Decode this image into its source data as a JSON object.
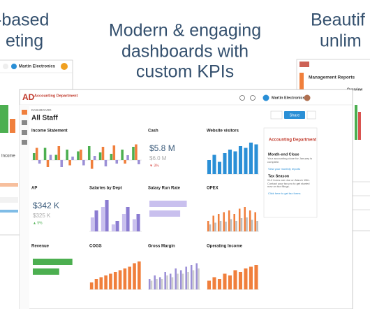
{
  "headline": {
    "left": [
      "-based",
      "eting"
    ],
    "center": [
      "Modern & engaging",
      "dashboards with",
      "custom KPIs"
    ],
    "right": [
      "Beautif",
      "unlim"
    ]
  },
  "left_screen": {
    "company": "Martin Electronics",
    "label": "Income"
  },
  "right_screen": {
    "title": "Management Reports",
    "tab": "Overview"
  },
  "app": {
    "logo": "Accounting Department",
    "company": "Martin Electronics",
    "section": "DASHBOARD",
    "dashboard": "All Staff",
    "share": "Share"
  },
  "widgets": [
    {
      "title": "Income Statement",
      "kind": "bars",
      "ylim": [
        -40,
        60
      ],
      "series": [
        {
          "color": "#4caf50",
          "values": [
            20,
            35,
            15,
            30,
            25,
            40,
            22,
            18,
            30,
            38
          ]
        },
        {
          "color": "#f07f3c",
          "values": [
            35,
            -20,
            40,
            -15,
            30,
            -25,
            38,
            42,
            -10,
            45
          ]
        },
        {
          "color": "#9b8fd6",
          "values": [
            -10,
            15,
            -20,
            10,
            -15,
            12,
            -18,
            -10,
            14,
            -12
          ]
        }
      ]
    },
    {
      "title": "Cash",
      "kind": "kpi",
      "value": "$5.8 M",
      "compare": "$6.0 M",
      "change": "▼ 3%",
      "change_color": "#d9534f"
    },
    {
      "title": "Website visitors",
      "kind": "bars",
      "ylim": [
        0,
        100
      ],
      "series": [
        {
          "color": "#2a8fd6",
          "values": [
            40,
            55,
            35,
            60,
            70,
            65,
            80,
            75,
            90,
            85
          ]
        }
      ]
    },
    {
      "title": "AP",
      "kind": "kpi",
      "value": "$342 K",
      "compare": "$325 K",
      "change": "▲ 5%",
      "change_color": "#4caf50"
    },
    {
      "title": "Salaries by Dept",
      "kind": "bars",
      "ylim": [
        0,
        100
      ],
      "series": [
        {
          "color": "#c9c0ee",
          "values": [
            40,
            70,
            20,
            50,
            35
          ]
        },
        {
          "color": "#8a7bd1",
          "values": [
            60,
            90,
            30,
            70,
            50
          ]
        }
      ]
    },
    {
      "title": "Salary Run Rate",
      "kind": "hbars",
      "xlim": [
        0,
        100
      ],
      "series": [
        {
          "color": "#c9c0ee",
          "values": [
            85,
            70
          ]
        }
      ]
    },
    {
      "title": "OPEX",
      "kind": "bars",
      "ylim": [
        0,
        100
      ],
      "series": [
        {
          "color": "#f07f3c",
          "values": [
            30,
            45,
            50,
            55,
            60,
            50,
            65,
            70,
            60,
            55
          ]
        },
        {
          "color": "#bbbbbb",
          "values": [
            20,
            25,
            30,
            28,
            35,
            30,
            38,
            40,
            33,
            30
          ]
        }
      ]
    },
    {
      "title": "Revenue",
      "kind": "hbars",
      "xlim": [
        0,
        100
      ],
      "series": [
        {
          "color": "#4caf50",
          "values": [
            90,
            60
          ]
        }
      ]
    },
    {
      "title": "COGS",
      "kind": "bars",
      "ylim": [
        0,
        100
      ],
      "series": [
        {
          "color": "#f07f3c",
          "values": [
            20,
            30,
            35,
            40,
            45,
            50,
            55,
            60,
            65,
            75,
            80
          ]
        }
      ]
    },
    {
      "title": "Gross Margin",
      "kind": "bars",
      "ylim": [
        0,
        100
      ],
      "series": [
        {
          "color": "#9b8fd6",
          "values": [
            30,
            40,
            35,
            50,
            45,
            60,
            55,
            65,
            70,
            75
          ]
        },
        {
          "color": "#cccccc",
          "values": [
            25,
            30,
            30,
            40,
            35,
            45,
            45,
            50,
            55,
            60
          ]
        }
      ]
    },
    {
      "title": "Operating Income",
      "kind": "bars",
      "ylim": [
        0,
        100
      ],
      "series": [
        {
          "color": "#f07f3c",
          "values": [
            25,
            35,
            30,
            45,
            40,
            55,
            50,
            60,
            65,
            70
          ]
        }
      ]
    }
  ],
  "side_panel": {
    "logo": "Accounting Department",
    "heading1": "Month-end Close",
    "text1": "Your accounting close for January is complete.",
    "link1": "View your monthly reports",
    "heading2": "Tax Season",
    "text2": "W-2 forms are due on March 15th. Contact your tax pro to get started now on tax filings.",
    "link2": "Click here to get tax forms"
  }
}
